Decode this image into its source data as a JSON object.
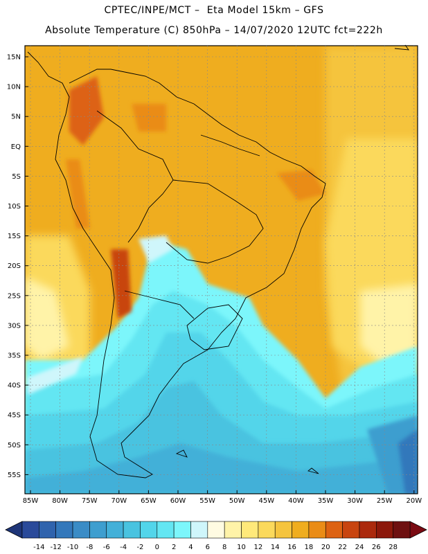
{
  "header": {
    "line1": "CPTEC/INPE/MCT –  Eta Model 15km – GFS",
    "line2": "Absolute Temperature (C) 850hPa – 14/07/2020 12UTC fct=222h"
  },
  "axes": {
    "lat_labels": [
      "15N",
      "10N",
      "5N",
      "EQ",
      "5S",
      "10S",
      "15S",
      "20S",
      "25S",
      "30S",
      "35S",
      "40S",
      "45S",
      "50S",
      "55S"
    ],
    "lon_labels": [
      "85W",
      "80W",
      "75W",
      "70W",
      "65W",
      "60W",
      "55W",
      "50W",
      "45W",
      "40W",
      "35W",
      "30W",
      "25W",
      "20W"
    ]
  },
  "colorbar": {
    "labels": [
      "-14",
      "-12",
      "-10",
      "-8",
      "-6",
      "-4",
      "-2",
      "0",
      "2",
      "4",
      "6",
      "8",
      "10",
      "12",
      "14",
      "16",
      "18",
      "20",
      "22",
      "24",
      "26",
      "28"
    ],
    "colors": [
      "#2a4a9a",
      "#2f63ad",
      "#3378bb",
      "#3a8cc6",
      "#3e9ecf",
      "#43b0d8",
      "#49c3e0",
      "#52d5ea",
      "#63e6f2",
      "#7cf6fb",
      "#cff6fb",
      "#fffbe2",
      "#fff3a8",
      "#ffe97a",
      "#fbd95b",
      "#f5c43e",
      "#efad1f",
      "#ea8c16",
      "#dd6212",
      "#c8440f",
      "#ab290d",
      "#8c180b",
      "#6e1010"
    ],
    "under_color": "#1e3578",
    "over_color": "#7a0a12"
  }
}
